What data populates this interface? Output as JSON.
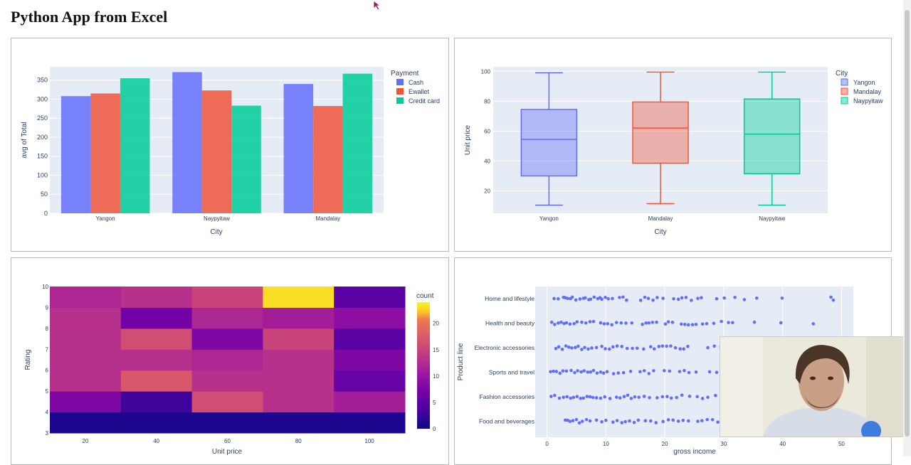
{
  "page": {
    "title": "Python App from Excel"
  },
  "colors": {
    "plot_bg": "#e5ecf6",
    "grid": "#ffffff",
    "cash": "#636efa",
    "ewallet": "#ef553b",
    "credit": "#00cc96",
    "yangon": "#636efa",
    "mandalay": "#ef553b",
    "naypyitaw": "#00cc96",
    "scatter": "#636efa"
  },
  "chart_data": [
    {
      "id": "bar",
      "type": "bar",
      "categories": [
        "Yangon",
        "Naypyitaw",
        "Mandalay"
      ],
      "series": [
        {
          "name": "Cash",
          "values": [
            308,
            371,
            340
          ],
          "color": "#636efa"
        },
        {
          "name": "Ewallet",
          "values": [
            315,
            323,
            282
          ],
          "color": "#ef553b"
        },
        {
          "name": "Credit card",
          "values": [
            355,
            283,
            367
          ],
          "color": "#00cc96"
        }
      ],
      "legend_title": "Payment",
      "xlabel": "City",
      "ylabel": "avg of Total",
      "ylim": [
        0,
        385
      ],
      "yticks": [
        0,
        50,
        100,
        150,
        200,
        250,
        300,
        350
      ]
    },
    {
      "id": "box",
      "type": "box",
      "categories": [
        "Yangon",
        "Mandalay",
        "Naypyitaw"
      ],
      "boxes": [
        {
          "name": "Yangon",
          "min": 10.5,
          "q1": 30,
          "median": 54.5,
          "q3": 74.5,
          "max": 99,
          "color": "#636efa"
        },
        {
          "name": "Mandalay",
          "min": 11.5,
          "q1": 38.5,
          "median": 62,
          "q3": 79.5,
          "max": 99.5,
          "color": "#ef553b"
        },
        {
          "name": "Naypyitaw",
          "min": 10.5,
          "q1": 31.5,
          "median": 58,
          "q3": 81.5,
          "max": 99.5,
          "color": "#00cc96"
        }
      ],
      "legend_title": "City",
      "xlabel": "City",
      "ylabel": "Unit price",
      "ylim": [
        5,
        103
      ],
      "yticks": [
        20,
        40,
        60,
        80,
        100
      ]
    },
    {
      "id": "heatmap",
      "type": "heatmap",
      "x_categories": [
        20,
        40,
        60,
        80,
        100
      ],
      "x_edges": [
        10,
        30,
        50,
        70,
        90,
        110
      ],
      "y_edges": [
        3,
        4,
        5,
        6,
        7,
        8,
        9,
        10
      ],
      "z": [
        [
          1,
          1,
          1,
          1,
          1
        ],
        [
          8,
          3,
          16,
          13,
          11
        ],
        [
          13,
          17,
          13,
          13,
          6
        ],
        [
          13,
          13,
          12,
          13,
          8
        ],
        [
          13,
          16,
          8,
          15,
          5
        ],
        [
          13,
          7,
          12,
          11,
          9
        ],
        [
          12,
          13,
          15,
          23,
          5
        ]
      ],
      "colorbar_title": "count",
      "colorbar_ticks": [
        0,
        5,
        10,
        15,
        20
      ],
      "zmax": 24,
      "xlabel": "Unit price",
      "ylabel": "Rating",
      "xticks": [
        20,
        40,
        60,
        80,
        100
      ],
      "yticks": [
        3,
        4,
        5,
        6,
        7,
        8,
        9,
        10
      ]
    },
    {
      "id": "scatter",
      "type": "scatter",
      "categories": [
        "Home and lifestyle",
        "Health and beauty",
        "Electronic accessories",
        "Sports and travel",
        "Fashion accessories",
        "Food and beverages"
      ],
      "xlabel": "gross income",
      "ylabel": "Product line",
      "xlim": [
        -2,
        52
      ],
      "xticks": [
        0,
        10,
        20,
        30,
        40,
        50
      ],
      "points": [
        [
          1.2,
          1.9,
          2.8,
          3.1,
          3.5,
          4.0,
          4.3,
          4.9,
          5.6,
          6.2,
          6.5,
          7.1,
          7.4,
          8.0,
          8.6,
          9.0,
          9.3,
          9.9,
          10.4,
          11.1,
          12.3,
          12.9,
          13.5,
          15.9,
          16.6,
          17.2,
          18.0,
          18.7,
          19.7,
          21.5,
          22.3,
          22.9,
          23.6,
          24.5,
          25.6,
          26.2,
          28.8,
          30.1,
          31.9,
          33.5,
          35.6,
          39.9,
          48.2,
          48.6
        ],
        [
          0.8,
          1.3,
          1.9,
          2.4,
          2.9,
          3.3,
          3.9,
          4.6,
          5.1,
          5.9,
          6.6,
          7.3,
          7.9,
          9.1,
          9.7,
          10.3,
          11.0,
          11.8,
          12.6,
          13.4,
          14.4,
          16.2,
          16.8,
          17.3,
          17.9,
          18.6,
          20.1,
          20.6,
          21.3,
          22.8,
          23.4,
          24.0,
          24.7,
          25.3,
          26.4,
          27.1,
          28.3,
          29.6,
          30.8,
          31.5,
          35.2,
          39.7,
          45.2
        ],
        [
          1.5,
          2.0,
          2.6,
          3.2,
          3.7,
          4.2,
          4.8,
          5.3,
          5.9,
          6.4,
          7.0,
          7.6,
          8.4,
          9.3,
          9.9,
          10.6,
          11.2,
          11.9,
          12.7,
          13.6,
          14.5,
          15.3,
          16.4,
          17.6,
          18.2,
          19.0,
          19.6,
          20.3,
          21.0,
          21.8,
          22.6,
          23.2,
          23.9,
          27.3,
          28.4,
          29.5,
          30.6,
          31.2
        ],
        [
          0.6,
          1.1,
          1.6,
          2.2,
          2.7,
          3.3,
          4.1,
          4.7,
          5.2,
          5.8,
          6.3,
          6.9,
          7.4,
          7.9,
          8.5,
          9.1,
          9.6,
          10.2,
          11.3,
          12.1,
          13.0,
          14.2,
          15.8,
          16.5,
          17.3,
          18.1,
          19.9,
          20.8,
          22.5,
          23.3,
          24.1,
          25.3,
          27.6,
          28.8,
          29.9,
          31.1
        ],
        [
          0.7,
          1.3,
          2.1,
          2.8,
          3.4,
          4.0,
          4.5,
          5.1,
          5.7,
          6.2,
          6.8,
          7.3,
          7.8,
          8.4,
          9.1,
          9.8,
          10.7,
          11.8,
          12.4,
          13.1,
          13.7,
          14.3,
          14.9,
          15.6,
          16.5,
          17.4,
          18.7,
          19.6,
          20.4,
          21.1,
          22.0,
          22.9,
          24.2,
          25.5,
          26.4,
          27.3,
          28.6,
          29.8
        ],
        [
          3.1,
          3.5,
          3.9,
          4.4,
          5.0,
          5.5,
          6.0,
          6.7,
          7.3,
          8.4,
          9.3,
          10.0,
          11.2,
          11.9,
          12.7,
          13.3,
          14.0,
          14.8,
          15.5,
          16.7,
          17.6,
          18.5,
          19.7,
          20.6,
          21.4,
          22.3,
          23.1,
          24.0,
          25.6,
          26.3,
          27.2,
          28.1,
          29.0,
          29.9
        ]
      ]
    }
  ]
}
